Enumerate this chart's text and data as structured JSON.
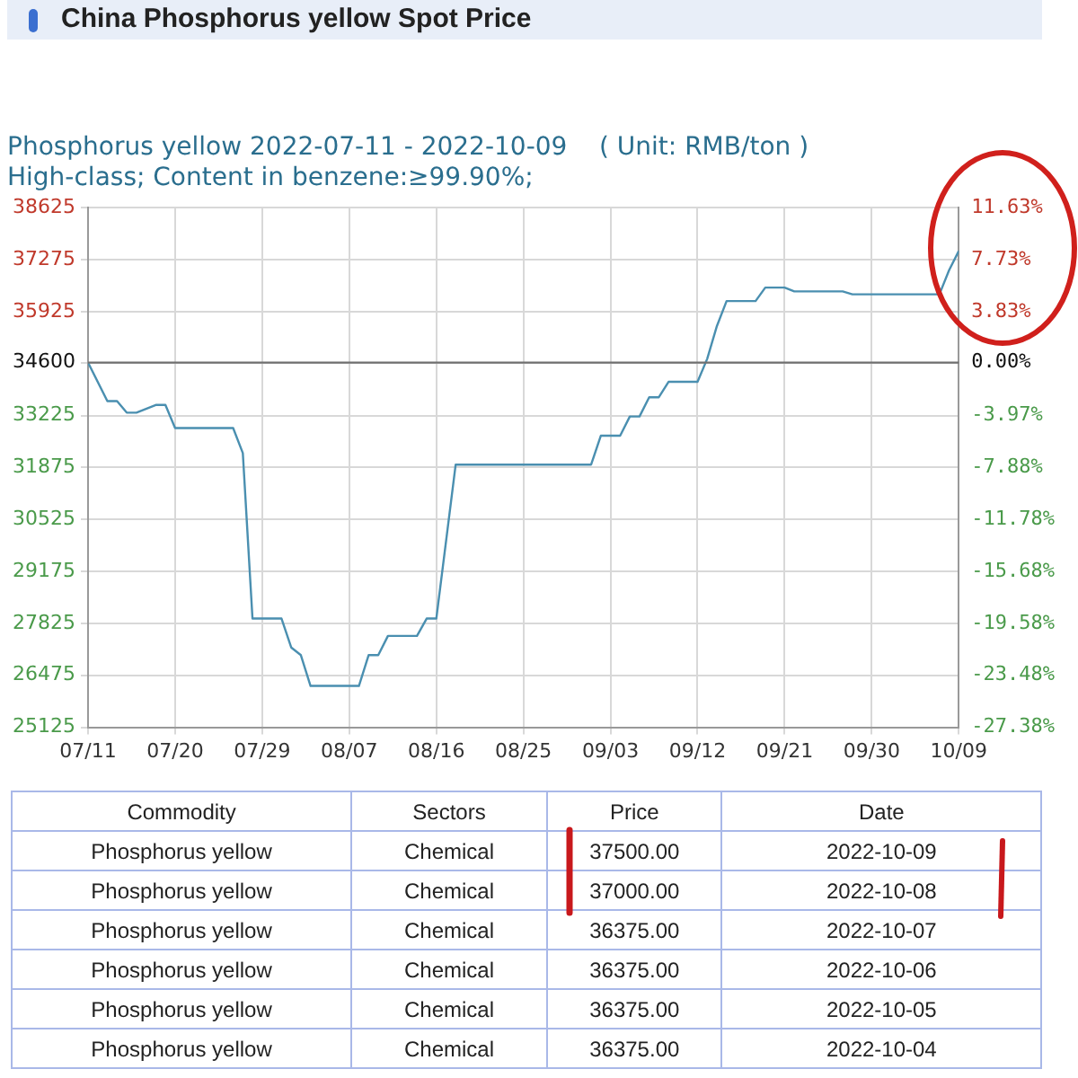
{
  "chart_data": {
    "type": "line",
    "title": "China Phosphorus yellow Spot Price",
    "subtitle": "Phosphorus yellow 2022-07-11 - 2022-10-09    ( Unit: RMB/ton )\nHigh-class; Content in benzene:≥99.90%;",
    "x": [
      "2022-07-11",
      "2022-07-13",
      "2022-07-14",
      "2022-07-15",
      "2022-07-16",
      "2022-07-18",
      "2022-07-19",
      "2022-07-20",
      "2022-07-26",
      "2022-07-27",
      "2022-07-28",
      "2022-07-31",
      "2022-08-01",
      "2022-08-02",
      "2022-08-03",
      "2022-08-08",
      "2022-08-09",
      "2022-08-10",
      "2022-08-11",
      "2022-08-14",
      "2022-08-15",
      "2022-08-16",
      "2022-08-18",
      "2022-09-01",
      "2022-09-02",
      "2022-09-04",
      "2022-09-05",
      "2022-09-06",
      "2022-09-07",
      "2022-09-08",
      "2022-09-09",
      "2022-09-12",
      "2022-09-13",
      "2022-09-14",
      "2022-09-15",
      "2022-09-18",
      "2022-09-19",
      "2022-09-21",
      "2022-09-22",
      "2022-09-27",
      "2022-09-28",
      "2022-10-07",
      "2022-10-08",
      "2022-10-09"
    ],
    "series": [
      {
        "color": "#4a8fb0",
        "values": [
          34600,
          33600,
          33600,
          33300,
          33300,
          33500,
          33500,
          32900,
          32900,
          32250,
          27950,
          27950,
          27200,
          27000,
          26200,
          26200,
          27000,
          27000,
          27500,
          27500,
          27950,
          27950,
          31950,
          31950,
          32700,
          32700,
          33200,
          33200,
          33700,
          33700,
          34100,
          34100,
          34700,
          35550,
          36200,
          36200,
          36550,
          36550,
          36450,
          36450,
          36375,
          36375,
          37000,
          37500
        ]
      }
    ],
    "xlim": [
      "2022-07-11",
      "2022-10-09"
    ],
    "xticks": [
      {
        "value": "2022-07-11",
        "label": "07/11"
      },
      {
        "value": "2022-07-20",
        "label": "07/20"
      },
      {
        "value": "2022-07-29",
        "label": "07/29"
      },
      {
        "value": "2022-08-07",
        "label": "08/07"
      },
      {
        "value": "2022-08-16",
        "label": "08/16"
      },
      {
        "value": "2022-08-25",
        "label": "08/25"
      },
      {
        "value": "2022-09-03",
        "label": "09/03"
      },
      {
        "value": "2022-09-12",
        "label": "09/12"
      },
      {
        "value": "2022-09-21",
        "label": "09/21"
      },
      {
        "value": "2022-09-30",
        "label": "09/30"
      },
      {
        "value": "2022-10-09",
        "label": "10/09"
      }
    ],
    "ylim": [
      25125,
      38625
    ],
    "yticks": [
      25125,
      26475,
      27825,
      29175,
      30525,
      31875,
      33225,
      34600,
      35925,
      37275,
      38625
    ],
    "y2lim": [
      -27.38,
      11.63
    ],
    "y2ticks": [
      {
        "value": -27.38,
        "label": "-27.38%"
      },
      {
        "value": -23.48,
        "label": "-23.48%"
      },
      {
        "value": -19.58,
        "label": "-19.58%"
      },
      {
        "value": -15.68,
        "label": "-15.68%"
      },
      {
        "value": -11.78,
        "label": "-11.78%"
      },
      {
        "value": -7.88,
        "label": "-7.88%"
      },
      {
        "value": -3.97,
        "label": "-3.97%"
      },
      {
        "value": 0,
        "label": "0.00%"
      },
      {
        "value": 3.83,
        "label": "3.83%"
      },
      {
        "value": 7.73,
        "label": "7.73%"
      },
      {
        "value": 11.63,
        "label": "11.63%"
      }
    ],
    "ref_lines": [
      {
        "axis": "y",
        "value": 34600,
        "color": "#707070"
      }
    ],
    "grid": true,
    "marker": "none",
    "annotations": [
      "Commodity",
      "Sectors",
      "Price",
      "Date",
      "Phosphorus yellow",
      "Chemical",
      "37500.00",
      "2022-10-09",
      "Phosphorus yellow",
      "Chemical",
      "37000.00",
      "2022-10-08",
      "Phosphorus yellow",
      "Chemical",
      "36375.00",
      "2022-10-07",
      "Phosphorus yellow",
      "Chemical",
      "36375.00",
      "2022-10-06",
      "Phosphorus yellow",
      "Chemical",
      "36375.00",
      "2022-10-05",
      "Phosphorus yellow",
      "Chemical",
      "36375.00",
      "2022-10-04"
    ]
  }
}
